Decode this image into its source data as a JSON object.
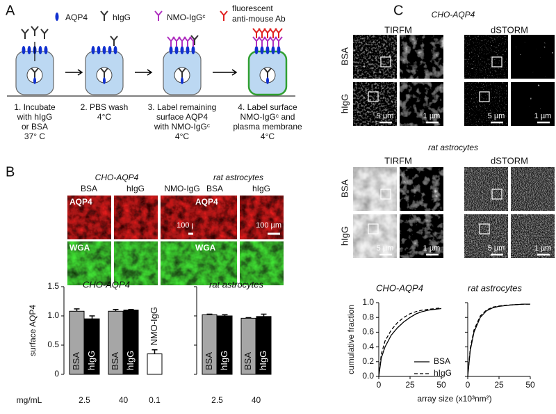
{
  "panel_a": {
    "letter": "A",
    "legend": [
      [
        "AQP4"
      ],
      [
        "hIgG"
      ],
      [
        "NMO-IgGᶜ"
      ],
      [
        "fluorescent",
        "anti-mouse Ab"
      ]
    ],
    "steps": [
      [
        "1.  Incubate",
        "with hIgG",
        "or BSA",
        "37° C"
      ],
      [
        "2. PBS wash",
        "4°C"
      ],
      [
        "3. Label remaining",
        "surface AQP4",
        "with NMO-IgGᶜ",
        "4°C"
      ],
      [
        "4. Label surface",
        "NMO-IgGᶜ and",
        "plasma membrane",
        "4°C"
      ]
    ]
  },
  "panel_b": {
    "letter": "B",
    "groups": [
      {
        "title": "CHO-AQP4",
        "columns": [
          "BSA",
          "hIgG",
          "NMO-IgG"
        ]
      },
      {
        "title": "rat astrocytes",
        "columns": [
          "BSA",
          "hIgG"
        ]
      }
    ],
    "rows": [
      "AQP4",
      "WGA"
    ],
    "scale_bar": "100 µm"
  },
  "panel_c": {
    "letter": "C",
    "groups": [
      {
        "title": "CHO-AQP4"
      },
      {
        "title": "rat astrocytes"
      }
    ],
    "methods": [
      "TIRFM",
      "dSTORM"
    ],
    "rows": [
      "BSA",
      "hIgG"
    ],
    "scale_bars": [
      "5 µm",
      "1 µm"
    ]
  },
  "chart_data": [
    {
      "type": "bar",
      "title": "CHO-AQP4",
      "y_label": "surface AQP4",
      "x_label": "mg/mL",
      "colors": {
        "BSA": "#a6a6a6",
        "hIgG": "#000000",
        "NMO-IgG": "#ffffff"
      },
      "groups": [
        {
          "label": "2.5",
          "categories": [
            "BSA",
            "hIgG"
          ],
          "values": [
            1.08,
            0.95
          ],
          "errors": [
            0.04,
            0.05
          ]
        },
        {
          "label": "40",
          "categories": [
            "BSA",
            "hIgG"
          ],
          "values": [
            1.08,
            1.1
          ],
          "errors": [
            0.03,
            0.01
          ]
        },
        {
          "label": "0.1",
          "categories": [
            "NMO-IgG"
          ],
          "values": [
            0.35
          ],
          "errors": [
            0.07
          ]
        }
      ],
      "ylim": [
        0,
        1.5
      ],
      "yticks": [
        0,
        0.5,
        {
          "value": 1,
          "label": "1.0"
        },
        1.5
      ],
      "show_ytick_labels": true
    },
    {
      "type": "bar",
      "title": "rat astrocytes",
      "colors": {
        "BSA": "#a6a6a6",
        "hIgG": "#000000"
      },
      "groups": [
        {
          "label": "2.5",
          "categories": [
            "BSA",
            "hIgG"
          ],
          "values": [
            1.02,
            1.0
          ],
          "errors": [
            0.01,
            0.02
          ]
        },
        {
          "label": "40",
          "categories": [
            "BSA",
            "hIgG"
          ],
          "values": [
            0.96,
            0.99
          ],
          "errors": [
            0.01,
            0.04
          ]
        }
      ],
      "ylim": [
        0,
        1.5
      ],
      "yticks": [
        0,
        0.5,
        1,
        1.5
      ],
      "show_ytick_labels": false
    },
    {
      "type": "line",
      "title": "CHO-AQP4",
      "y_label": "cumulative fraction",
      "x_label": "array size (x10³nm²)",
      "legend": true,
      "x": [
        0,
        2,
        5,
        10,
        15,
        20,
        25,
        30,
        35,
        40,
        45,
        50
      ],
      "series": [
        {
          "name": "BSA",
          "color": "#000000",
          "dash": false,
          "values": [
            0,
            0.25,
            0.4,
            0.56,
            0.66,
            0.74,
            0.8,
            0.85,
            0.88,
            0.9,
            0.91,
            0.92
          ]
        },
        {
          "name": "hIgG",
          "color": "#000000",
          "dash": true,
          "values": [
            0,
            0.3,
            0.48,
            0.63,
            0.73,
            0.8,
            0.85,
            0.88,
            0.9,
            0.91,
            0.92,
            0.93
          ]
        }
      ],
      "xlim": [
        0,
        50
      ],
      "ylim": [
        0,
        1
      ],
      "xticks": [
        0,
        25,
        50
      ],
      "yticks": [
        {
          "value": 0,
          "label": "0.0"
        },
        0.2,
        0.4,
        0.6,
        0.8,
        {
          "value": 1,
          "label": "1.0"
        }
      ],
      "show_ytick_labels": true
    },
    {
      "type": "line",
      "title": "rat astrocytes",
      "legend": false,
      "x": [
        0,
        2,
        5,
        10,
        15,
        20,
        25,
        30,
        35,
        40,
        45,
        50
      ],
      "series": [
        {
          "name": "BSA",
          "color": "#000000",
          "dash": false,
          "values": [
            0,
            0.35,
            0.6,
            0.8,
            0.89,
            0.93,
            0.95,
            0.96,
            0.97,
            0.975,
            0.98,
            0.98
          ]
        },
        {
          "name": "hIgG",
          "color": "#000000",
          "dash": true,
          "values": [
            0,
            0.38,
            0.63,
            0.82,
            0.9,
            0.94,
            0.955,
            0.965,
            0.97,
            0.975,
            0.98,
            0.98
          ]
        }
      ],
      "xlim": [
        0,
        50
      ],
      "ylim": [
        0,
        1
      ],
      "xticks": [
        0,
        25,
        50
      ],
      "yticks": [
        0,
        0.2,
        0.4,
        0.6,
        0.8,
        1
      ],
      "show_ytick_labels": false
    }
  ]
}
